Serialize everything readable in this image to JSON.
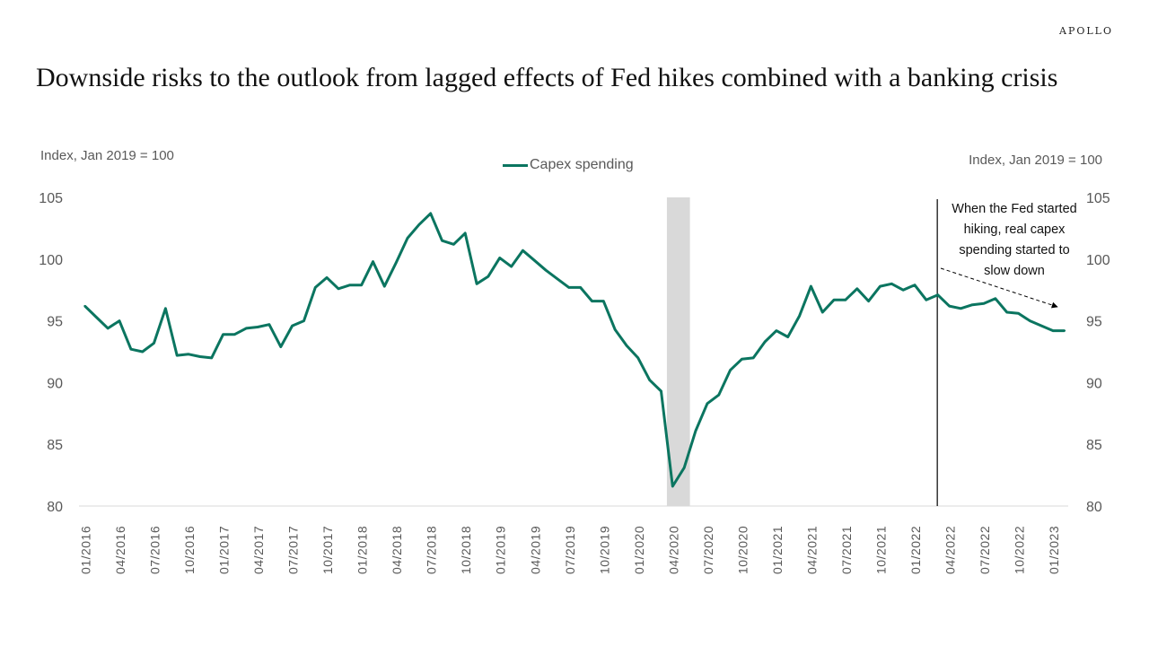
{
  "brand": "APOLLO",
  "title": "Downside risks to the outlook from lagged effects of Fed hikes combined with a banking crisis",
  "colors": {
    "line": "#0b7560",
    "recession": "#d9d9d9",
    "axis_text": "#595959",
    "vline": "#000000"
  },
  "chart_data": {
    "type": "line",
    "title": "Downside risks to the outlook from lagged effects of Fed hikes combined with a banking crisis",
    "ylabel_left": "Index, Jan 2019  = 100",
    "ylabel_right": "Index, Jan 2019  = 100",
    "ylim": [
      80,
      105
    ],
    "yticks": [
      80,
      85,
      90,
      95,
      100,
      105
    ],
    "ytick_labels": [
      "80",
      "85",
      "90",
      "95",
      "100",
      "105"
    ],
    "grid": false,
    "legend": {
      "position": "top-center",
      "entries": [
        "Capex spending"
      ]
    },
    "x_start": "01/2016",
    "x_tick_labels": [
      "01/2016",
      "04/2016",
      "07/2016",
      "10/2016",
      "01/2017",
      "04/2017",
      "07/2017",
      "10/2017",
      "01/2018",
      "04/2018",
      "07/2018",
      "10/2018",
      "01/2019",
      "04/2019",
      "07/2019",
      "10/2019",
      "01/2020",
      "04/2020",
      "07/2020",
      "10/2020",
      "01/2021",
      "04/2021",
      "07/2021",
      "10/2021",
      "01/2022",
      "04/2022",
      "07/2022",
      "10/2022",
      "01/2023"
    ],
    "x_tick_step_months": 3,
    "series": [
      {
        "name": "Capex spending",
        "values": [
          96.2,
          95.3,
          94.4,
          95.0,
          92.7,
          92.5,
          93.2,
          96.0,
          92.2,
          92.3,
          92.1,
          92.0,
          93.9,
          93.9,
          94.4,
          94.5,
          94.7,
          92.9,
          94.6,
          95.0,
          97.7,
          98.5,
          97.6,
          97.9,
          97.9,
          99.8,
          97.8,
          99.7,
          101.7,
          102.8,
          103.7,
          101.5,
          101.2,
          102.1,
          98.0,
          98.6,
          100.1,
          99.4,
          100.7,
          99.9,
          99.1,
          98.4,
          97.7,
          97.7,
          96.6,
          96.6,
          94.3,
          93.0,
          92.0,
          90.2,
          89.3,
          81.6,
          83.1,
          86.1,
          88.3,
          89.0,
          91.0,
          91.9,
          92.0,
          93.3,
          94.2,
          93.7,
          95.4,
          97.8,
          95.7,
          96.7,
          96.7,
          97.6,
          96.6,
          97.8,
          98.0,
          97.5,
          97.9,
          96.7,
          97.1,
          96.2,
          96.0,
          96.3,
          96.4,
          96.8,
          95.7,
          95.6,
          95.0,
          94.6,
          94.2,
          94.2
        ]
      }
    ],
    "recession_band_months": [
      50.5,
      52.5
    ],
    "fed_hike_start_month_index": 74,
    "annotation": {
      "lines": [
        "When the Fed started",
        "hiking, real capex",
        "spending started to",
        "slow down"
      ]
    }
  }
}
